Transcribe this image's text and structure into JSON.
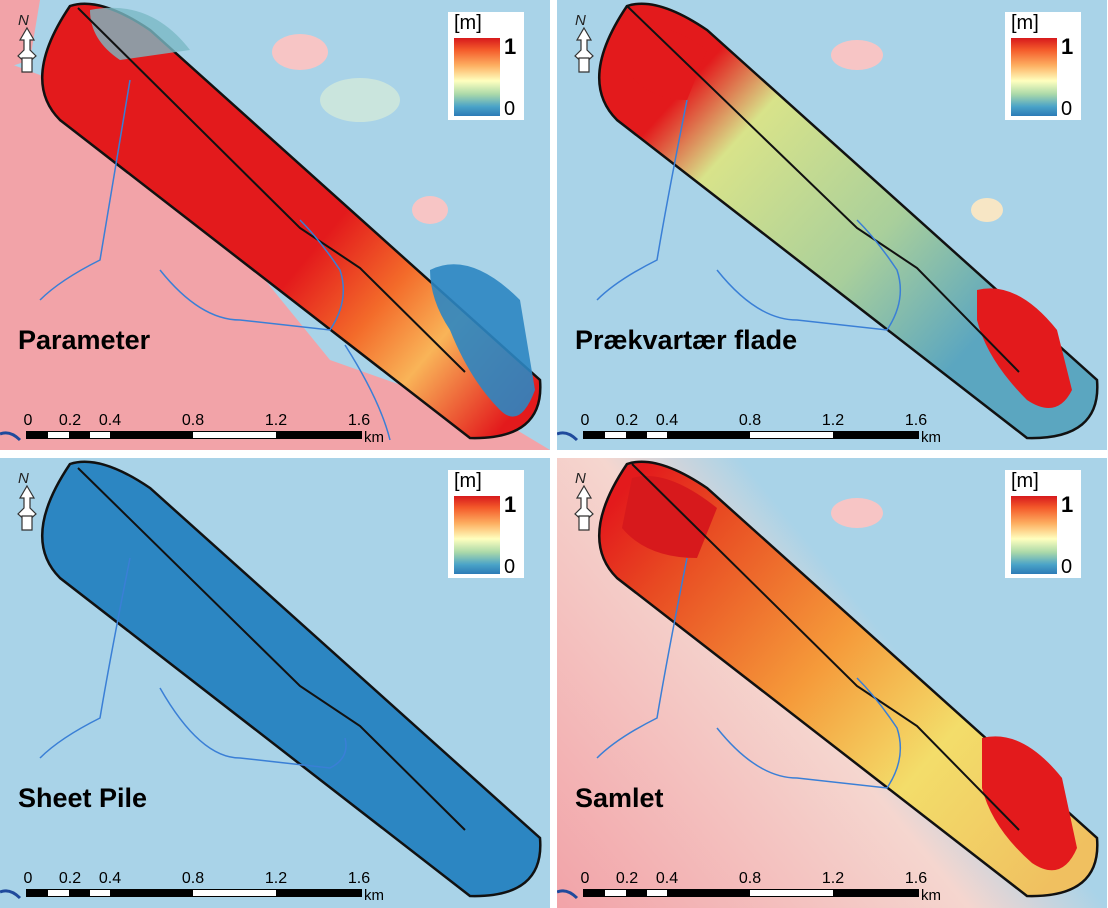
{
  "legend": {
    "unit": "[m]",
    "max_label": "1",
    "min_label": "0"
  },
  "north_label": "N",
  "scale": {
    "ticks": [
      "0",
      "0.2",
      "0.4",
      "0.8",
      "1.2",
      "1.6"
    ],
    "unit": "km"
  },
  "panels": [
    {
      "label": "Parameter"
    },
    {
      "label": "Prækvartær flade"
    },
    {
      "label": "Sheet Pile"
    },
    {
      "label": "Samlet"
    }
  ],
  "colors": {
    "background_sea": "#a9d3e8",
    "background_land": "#f2a3a8",
    "high": "#e31a1c",
    "mid": "#f5e97a",
    "low": "#2c86c2",
    "streams": "#3a7fd6"
  }
}
